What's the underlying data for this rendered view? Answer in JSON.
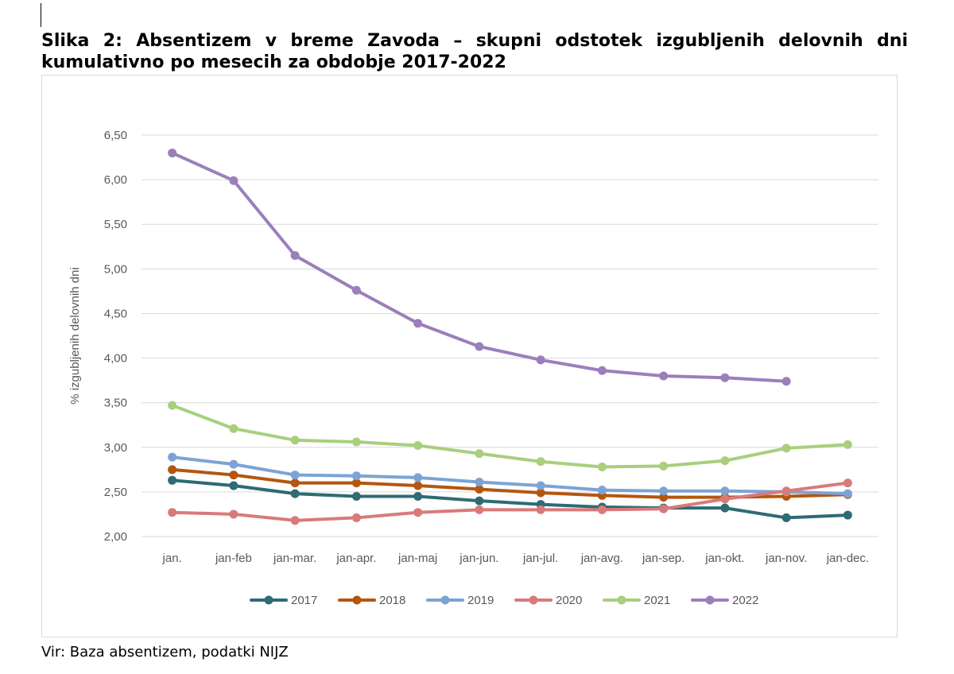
{
  "title": "Slika 2: Absentizem v breme Zavoda – skupni odstotek izgubljenih delovnih dni kumulativno po mesecih za obdobje 2017-2022",
  "source": "Vir: Baza absentizem, podatki NIJZ",
  "chart_data": {
    "type": "line",
    "ylabel": "% izgubljenih delovnih dni",
    "xlabel": "",
    "ylim": [
      2.0,
      6.5
    ],
    "yticks": [
      "2,00",
      "2,50",
      "3,00",
      "3,50",
      "4,00",
      "4,50",
      "5,00",
      "5,50",
      "6,00",
      "6,50"
    ],
    "grid": true,
    "legend_position": "bottom",
    "categories": [
      "jan.",
      "jan-feb",
      "jan-mar.",
      "jan-apr.",
      "jan-maj",
      "jan-jun.",
      "jan-jul.",
      "jan-avg.",
      "jan-sep.",
      "jan-okt.",
      "jan-nov.",
      "jan-dec."
    ],
    "series": [
      {
        "name": "2017",
        "color": "#2e6b74",
        "values": [
          2.63,
          2.57,
          2.48,
          2.45,
          2.45,
          2.4,
          2.36,
          2.33,
          2.32,
          2.32,
          2.21,
          2.24
        ]
      },
      {
        "name": "2018",
        "color": "#b5560f",
        "values": [
          2.75,
          2.69,
          2.6,
          2.6,
          2.57,
          2.53,
          2.49,
          2.46,
          2.44,
          2.44,
          2.45,
          2.47
        ]
      },
      {
        "name": "2019",
        "color": "#7ca3d4",
        "values": [
          2.89,
          2.81,
          2.69,
          2.68,
          2.66,
          2.61,
          2.57,
          2.52,
          2.51,
          2.51,
          2.5,
          2.48
        ]
      },
      {
        "name": "2020",
        "color": "#d97a7a",
        "values": [
          2.27,
          2.25,
          2.18,
          2.21,
          2.27,
          2.3,
          2.3,
          2.3,
          2.31,
          2.42,
          2.51,
          2.6
        ]
      },
      {
        "name": "2021",
        "color": "#a9cf7d",
        "values": [
          3.47,
          3.21,
          3.08,
          3.06,
          3.02,
          2.93,
          2.84,
          2.78,
          2.79,
          2.85,
          2.99,
          3.03
        ]
      },
      {
        "name": "2022",
        "color": "#9b7fba",
        "values": [
          6.3,
          5.99,
          5.15,
          4.76,
          4.39,
          4.13,
          3.98,
          3.86,
          3.8,
          3.78,
          3.74,
          null
        ]
      }
    ]
  }
}
